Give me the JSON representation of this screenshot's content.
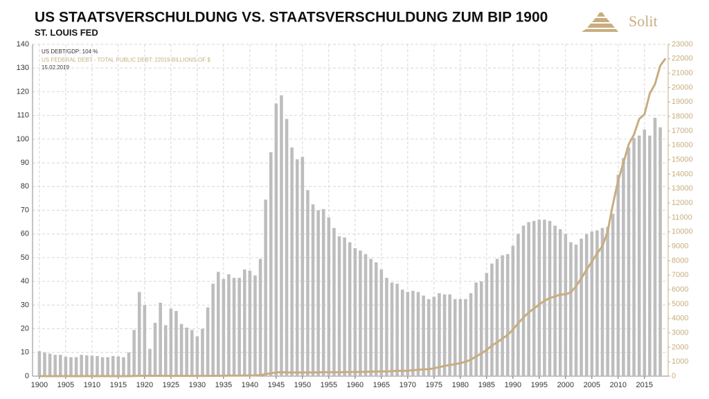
{
  "logo": {
    "text": "Solit"
  },
  "chart_data": {
    "type": "bar_line",
    "title": "US STAATSVERSCHULDUNG VS. STAATSVERSCHULDUNG ZUM BIP 1900",
    "subtitle": "ST. LOUIS FED",
    "annotations": [
      "US DEBT/GDP: 104 %",
      "US FEDERAL DEBT - TOTAL PUBLIC DEBT: 22019 BILLIONS OF $",
      "15.02.2019"
    ],
    "x": [
      1900,
      1901,
      1902,
      1903,
      1904,
      1905,
      1906,
      1907,
      1908,
      1909,
      1910,
      1911,
      1912,
      1913,
      1914,
      1915,
      1916,
      1917,
      1918,
      1919,
      1920,
      1921,
      1922,
      1923,
      1924,
      1925,
      1926,
      1927,
      1928,
      1929,
      1930,
      1931,
      1932,
      1933,
      1934,
      1935,
      1936,
      1937,
      1938,
      1939,
      1940,
      1941,
      1942,
      1943,
      1944,
      1945,
      1946,
      1947,
      1948,
      1949,
      1950,
      1951,
      1952,
      1953,
      1954,
      1955,
      1956,
      1957,
      1958,
      1959,
      1960,
      1961,
      1962,
      1963,
      1964,
      1965,
      1966,
      1967,
      1968,
      1969,
      1970,
      1971,
      1972,
      1973,
      1974,
      1975,
      1976,
      1977,
      1978,
      1979,
      1980,
      1981,
      1982,
      1983,
      1984,
      1985,
      1986,
      1987,
      1988,
      1989,
      1990,
      1991,
      1992,
      1993,
      1994,
      1995,
      1996,
      1997,
      1998,
      1999,
      2000,
      2001,
      2002,
      2003,
      2004,
      2005,
      2006,
      2007,
      2008,
      2009,
      2010,
      2011,
      2012,
      2013,
      2014,
      2015,
      2016,
      2017,
      2018,
      2019
    ],
    "series": [
      {
        "name": "US DEBT/GDP",
        "color": "#bdbdbd",
        "kind": "bar",
        "axis": "y",
        "values": [
          10.5,
          10,
          9.5,
          9,
          9,
          8.2,
          8,
          8,
          9,
          8.8,
          8.6,
          8.5,
          8,
          8,
          8.5,
          8.3,
          8,
          10,
          19.5,
          35.5,
          30,
          11.5,
          22.5,
          31,
          21.5,
          28.5,
          27.5,
          22,
          20.5,
          19.5,
          16.8,
          20,
          29,
          39,
          44,
          41,
          43,
          41.5,
          41.5,
          45,
          44.5,
          42.5,
          49.5,
          74.5,
          94.5,
          115,
          118.5,
          108.5,
          96.5,
          91.5,
          92.5,
          78.5,
          72.5,
          70,
          70.5,
          67,
          62.5,
          59,
          58.5,
          56.5,
          54,
          53,
          51.5,
          49.5,
          48,
          45,
          41.5,
          39.5,
          39,
          36.5,
          35.5,
          36,
          35.5,
          34,
          32.5,
          33.5,
          35,
          34.5,
          34.5,
          32.5,
          32.5,
          32.5,
          35,
          39.5,
          40,
          43.5,
          47.5,
          49.5,
          51,
          51.5,
          55,
          60,
          63.5,
          65,
          65.5,
          66,
          66,
          65.5,
          63.5,
          62,
          60,
          56.5,
          55.5,
          58,
          60,
          61,
          61.5,
          62.5,
          63,
          68.5,
          85,
          92,
          96.5,
          100.5,
          101.5,
          104,
          101.5,
          109,
          105,
          null
        ]
      },
      {
        "name": "US FEDERAL DEBT - TOTAL PUBLIC DEBT",
        "color": "#c8ad7f",
        "kind": "line",
        "axis": "y2",
        "values": [
          1,
          1,
          1,
          1,
          1,
          1,
          1,
          1,
          1,
          1,
          1,
          1,
          1,
          1,
          1,
          1,
          1,
          3,
          12,
          25,
          24,
          23,
          23,
          22,
          21,
          20,
          19,
          18,
          18,
          17,
          16,
          17,
          19,
          22,
          27,
          29,
          34,
          36,
          37,
          40,
          43,
          49,
          72,
          137,
          201,
          259,
          269,
          258,
          252,
          253,
          257,
          255,
          259,
          266,
          271,
          274,
          273,
          272,
          280,
          287,
          291,
          293,
          303,
          310,
          317,
          323,
          329,
          341,
          370,
          366,
          381,
          408,
          436,
          466,
          484,
          542,
          629,
          706,
          777,
          829,
          909,
          995,
          1137,
          1372,
          1565,
          1817,
          2121,
          2346,
          2602,
          2857,
          3233,
          3665,
          4065,
          4411,
          4693,
          4974,
          5225,
          5413,
          5526,
          5656,
          5674,
          5807,
          6228,
          6783,
          7379,
          7933,
          8507,
          9008,
          10025,
          11910,
          13562,
          14790,
          16066,
          16738,
          17824,
          18151,
          19573,
          20245,
          21516,
          22019
        ]
      }
    ],
    "xlim": [
      1898.7,
      2019.5
    ],
    "xticks": [
      1900,
      1905,
      1910,
      1915,
      1920,
      1925,
      1930,
      1935,
      1940,
      1945,
      1950,
      1955,
      1960,
      1965,
      1970,
      1975,
      1980,
      1985,
      1990,
      1995,
      2000,
      2005,
      2010,
      2015
    ],
    "ylim": [
      0,
      140
    ],
    "yticks": [
      0,
      10,
      20,
      30,
      40,
      50,
      60,
      70,
      80,
      90,
      100,
      110,
      120,
      130,
      140
    ],
    "y2lim": [
      0,
      23000
    ],
    "y2ticks": [
      0,
      1000,
      2000,
      3000,
      4000,
      5000,
      6000,
      7000,
      8000,
      9000,
      10000,
      11000,
      12000,
      13000,
      14000,
      15000,
      16000,
      17000,
      18000,
      19000,
      20000,
      21000,
      22000,
      23000
    ],
    "grid": true
  }
}
